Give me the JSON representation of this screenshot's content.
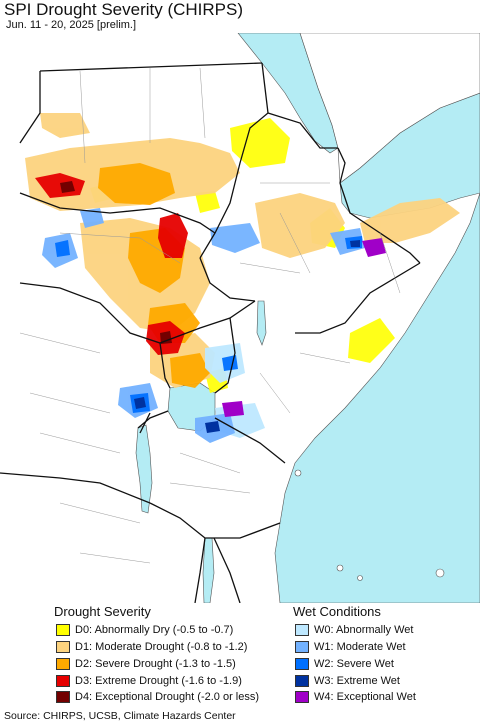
{
  "header": {
    "title": "SPI Drought Severity (CHIRPS)",
    "subtitle": "Jun. 11 - 20, 2025 [prelim.]"
  },
  "legend": {
    "drought": {
      "heading": "Drought Severity",
      "items": [
        {
          "label": "D0: Abnormally Dry (-0.5 to -0.7)",
          "color": "#ffff00"
        },
        {
          "label": "D1: Moderate Drought (-0.8 to -1.2)",
          "color": "#fcd37f"
        },
        {
          "label": "D2: Severe Drought (-1.3 to -1.5)",
          "color": "#ffaa00"
        },
        {
          "label": "D3: Extreme Drought (-1.6 to -1.9)",
          "color": "#e60000"
        },
        {
          "label": "D4: Exceptional Drought (-2.0 or less)",
          "color": "#730000"
        }
      ]
    },
    "wet": {
      "heading": "Wet Conditions",
      "items": [
        {
          "label": "W0: Abnormally Wet",
          "color": "#bee8ff"
        },
        {
          "label": "W1: Moderate Wet",
          "color": "#73b2ff"
        },
        {
          "label": "W2: Severe Wet",
          "color": "#0070ff"
        },
        {
          "label": "W3: Extreme Wet",
          "color": "#0032a0"
        },
        {
          "label": "W4: Exceptional Wet",
          "color": "#a000c8"
        }
      ]
    }
  },
  "map_colors": {
    "water": "#b4ecf4",
    "land": "#ffffff",
    "border": "#111111",
    "admin": "#999999"
  },
  "footer": {
    "source": "Source: CHIRPS, UCSB, Climate Hazards Center"
  }
}
